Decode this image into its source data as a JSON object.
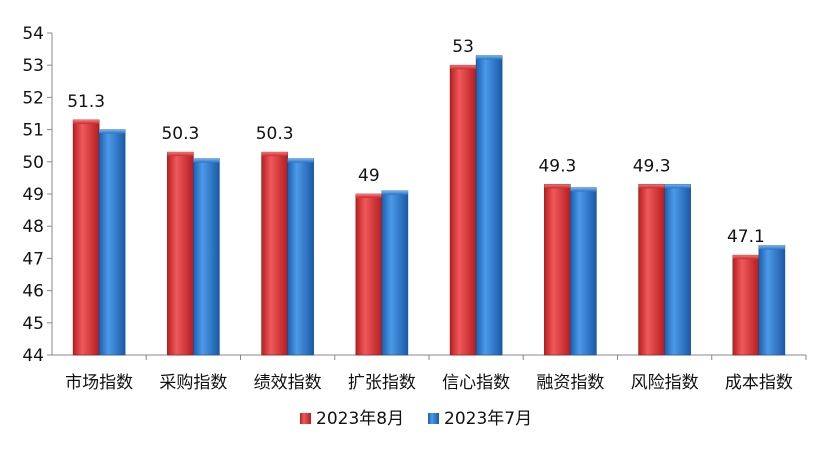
{
  "chart_data": {
    "type": "bar",
    "categories": [
      "市场指数",
      "采购指数",
      "绩效指数",
      "扩张指数",
      "信心指数",
      "融资指数",
      "风险指数",
      "成本指数"
    ],
    "series": [
      {
        "name": "2023年8月",
        "values": [
          51.3,
          50.3,
          50.3,
          49.0,
          53.0,
          49.3,
          49.3,
          47.1
        ],
        "color": "#e0393b"
      },
      {
        "name": "2023年7月",
        "values": [
          51.0,
          50.1,
          50.1,
          49.1,
          53.3,
          49.2,
          49.3,
          47.4
        ],
        "color": "#2f7fd6"
      }
    ],
    "data_labels": [
      "51.3",
      "50.3",
      "50.3",
      "49",
      "53",
      "49.3",
      "49.3",
      "47.1"
    ],
    "yticks": [
      44,
      45,
      46,
      47,
      48,
      49,
      50,
      51,
      52,
      53,
      54
    ],
    "ylim": [
      44,
      54
    ],
    "title": "",
    "xlabel": "",
    "ylabel": "",
    "grid": false,
    "legend_position": "bottom"
  }
}
